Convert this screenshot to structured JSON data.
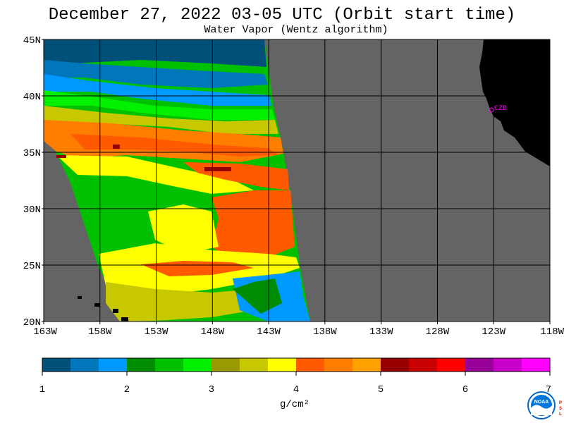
{
  "title": "December 27, 2022  03-05 UTC  (Orbit start time)",
  "subtitle": "Water Vapor (Wentz algorithm)",
  "map": {
    "lat_labels": [
      "45N",
      "40N",
      "35N",
      "30N",
      "25N",
      "20N"
    ],
    "lon_labels": [
      "163W",
      "158W",
      "153W",
      "148W",
      "143W",
      "138W",
      "133W",
      "128W",
      "123W",
      "118W"
    ],
    "city": "CZD",
    "land_color": "#000000",
    "nodata_color": "#646464"
  },
  "colorbar": {
    "tick_labels": [
      "1",
      "2",
      "3",
      "4",
      "5",
      "6",
      "7"
    ],
    "units": "g/cm²",
    "colors": [
      "#00507a",
      "#0076bb",
      "#0099ff",
      "#008c00",
      "#00c000",
      "#00f000",
      "#9a9a00",
      "#c8c800",
      "#ffff00",
      "#ff5a00",
      "#ff7e00",
      "#ffa200",
      "#960000",
      "#c80000",
      "#ff0000",
      "#960096",
      "#c800c8",
      "#ff00ff"
    ]
  },
  "logo": {
    "name": "NOAA",
    "side_text": "PSL"
  }
}
